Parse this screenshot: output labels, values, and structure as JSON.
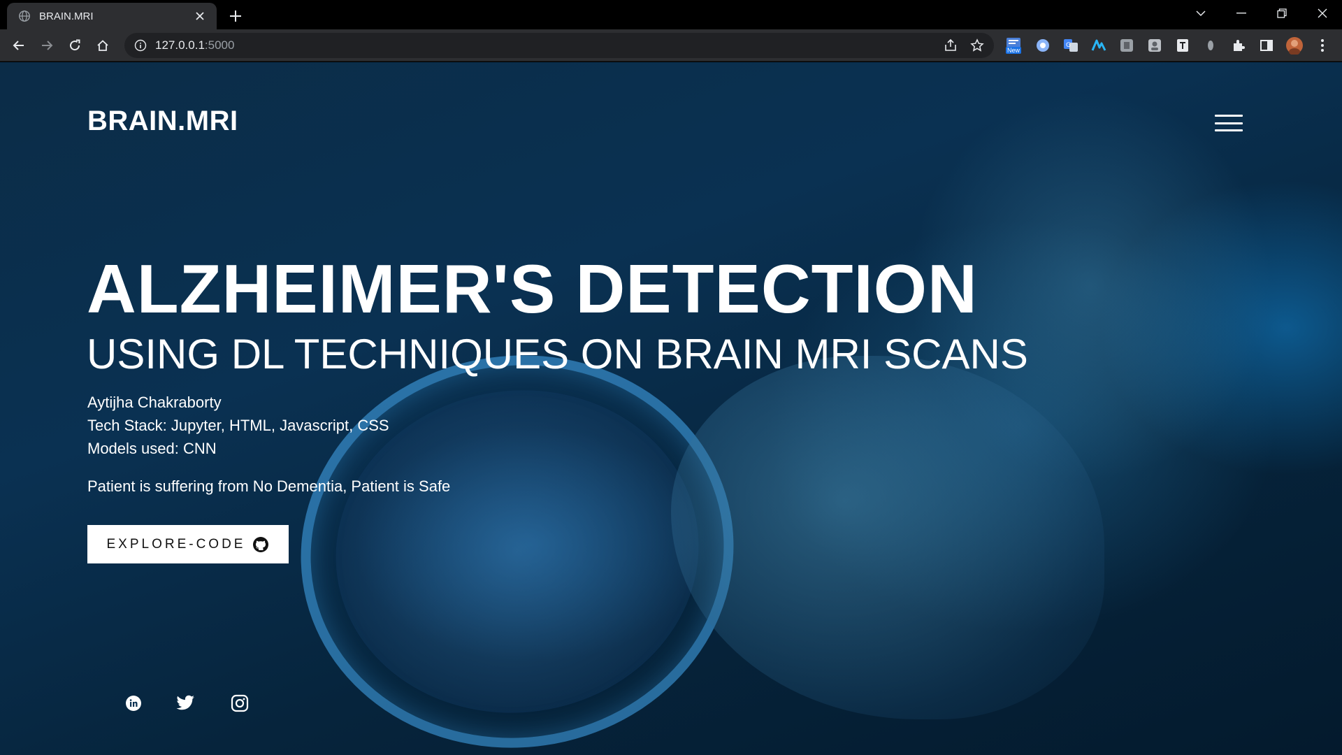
{
  "browser": {
    "tab_title": "BRAIN.MRI",
    "url_host": "127.0.0.1",
    "url_port": ":5000",
    "extension_badge": "New"
  },
  "site": {
    "brand": "BRAIN.MRI",
    "title": "ALZHEIMER'S DETECTION",
    "subtitle": "USING DL TECHNIQUES ON BRAIN MRI SCANS",
    "author": "Aytijha Chakraborty",
    "tech_stack": "Tech Stack: Jupyter, HTML, Javascript, CSS",
    "models": "Models used: CNN",
    "result": "Patient is suffering from No Dementia, Patient is Safe",
    "explore_label": "EXPLORE-CODE"
  },
  "social": [
    "linkedin-icon",
    "twitter-icon",
    "instagram-icon"
  ],
  "colors": {
    "chrome_bg": "#000000",
    "toolbar_bg": "#2d2e31",
    "page_tint": "#0a3152",
    "accent": "#1e88e5"
  }
}
